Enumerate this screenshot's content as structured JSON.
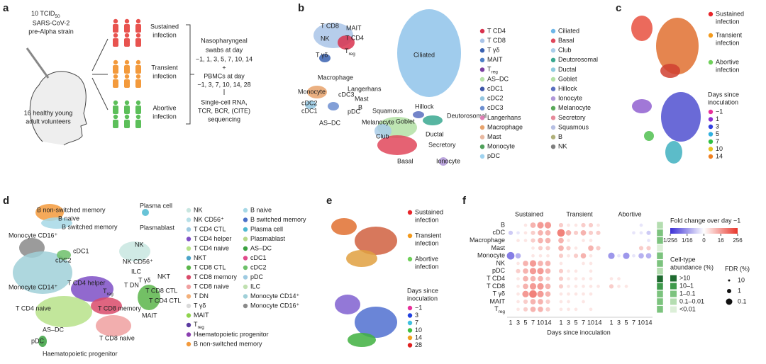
{
  "panels": {
    "a": {
      "letter": "a",
      "inoculum": {
        "dose": "10 TCID",
        "sub": "50",
        "lines": [
          "SARS-CoV-2",
          "pre-Alpha strain"
        ]
      },
      "cohort": [
        "16 healthy young",
        "adult volunteers"
      ],
      "groups": [
        {
          "name": [
            "Sustained",
            "infection"
          ],
          "color": "#e8534f"
        },
        {
          "name": [
            "Transient",
            "infection"
          ],
          "color": "#f39a3c"
        },
        {
          "name": [
            "Abortive",
            "infection"
          ],
          "color": "#5cbf5a"
        }
      ],
      "protocol": [
        "Nasopharyngeal",
        "swabs at day",
        "−1, 1, 3, 5, 7, 10, 14",
        "+",
        "PBMCs at day",
        "−1, 3, 7, 10, 14, 28",
        "Single-cell RNA,",
        "TCR, BCR, (CITE)",
        "sequencing"
      ]
    },
    "b": {
      "letter": "b",
      "umap_labels": [
        "T CD8",
        "MAIT",
        "T CD4",
        "NK",
        {
          "main": "T",
          "sub": "reg"
        },
        "T γδ",
        "Ciliated",
        "Macrophage",
        "Langerhans",
        "Monocyte",
        "cDC3",
        "Mast",
        "cDC2",
        "B",
        "cDC1",
        "pDC",
        "AS–DC",
        "Squamous",
        "Hillock",
        "Deutorosomal",
        "Melanocyte",
        "Goblet",
        "Ductal",
        "Club",
        "Secretory",
        "Basal",
        "Ionocyte"
      ],
      "legend": [
        [
          {
            "name": "T CD4",
            "color": "#d9314d"
          },
          {
            "name": "T CD8",
            "color": "#a9c4e8"
          },
          {
            "name": "T γδ",
            "color": "#3a61b0"
          },
          {
            "name": "MAIT",
            "color": "#4f80c7"
          },
          {
            "name": {
              "main": "T",
              "sub": "reg"
            },
            "color": "#7b3fa0"
          },
          {
            "name": "AS–DC",
            "color": "#b6e0a8"
          },
          {
            "name": "cDC1",
            "color": "#3f57a8"
          },
          {
            "name": "cDC2",
            "color": "#92c6e0"
          },
          {
            "name": "cDC3",
            "color": "#6c8ed0"
          },
          {
            "name": "Langerhans",
            "color": "#e07fb5"
          },
          {
            "name": "Macrophage",
            "color": "#e7a26b"
          },
          {
            "name": "Mast",
            "color": "#e8b8a0"
          },
          {
            "name": "Monocyte",
            "color": "#4fa05a"
          },
          {
            "name": "pDC",
            "color": "#9fd3f0"
          }
        ],
        [
          {
            "name": "Ciliated",
            "color": "#6db6e8"
          },
          {
            "name": "Basal",
            "color": "#e0475a"
          },
          {
            "name": "Club",
            "color": "#a9cde9"
          },
          {
            "name": "Deutorosomal",
            "color": "#3aa890"
          },
          {
            "name": "Ductal",
            "color": "#8fcbe0"
          },
          {
            "name": "Goblet",
            "color": "#b3e0a5"
          },
          {
            "name": "Hillock",
            "color": "#5a6fc0"
          },
          {
            "name": "Ionocyte",
            "color": "#b097d8"
          },
          {
            "name": "Melanocyte",
            "color": "#58a858"
          },
          {
            "name": "Secretory",
            "color": "#e68a9a"
          },
          {
            "name": "Squamous",
            "color": "#b6bfe3"
          },
          {
            "name": "B",
            "color": "#b0b07a"
          },
          {
            "name": "NK",
            "color": "#7f7f7f"
          }
        ]
      ]
    },
    "c": {
      "letter": "c",
      "infection": [
        {
          "name": [
            "Sustained",
            "infection"
          ],
          "color": "#e8252a"
        },
        {
          "name": [
            "Transient",
            "infection"
          ],
          "color": "#f39a1c"
        },
        {
          "name": [
            "Abortive",
            "infection"
          ],
          "color": "#6fd05a"
        }
      ],
      "days_title": [
        "Days since",
        "inoculation"
      ],
      "days": [
        {
          "name": "−1",
          "color": "#e8309a"
        },
        {
          "name": "1",
          "color": "#8c2fd0"
        },
        {
          "name": "3",
          "color": "#3040e0"
        },
        {
          "name": "5",
          "color": "#30b0e0"
        },
        {
          "name": "7",
          "color": "#30c040"
        },
        {
          "name": "10",
          "color": "#e8c020"
        },
        {
          "name": "14",
          "color": "#f08020"
        }
      ]
    },
    "d": {
      "letter": "d",
      "umap_labels": [
        "B non-switched memory",
        "B naive",
        "B switched memory",
        "Plasma cell",
        "Plasmablast",
        "Monocyte CD16⁺",
        "cDC1",
        "NK",
        "cDC2",
        "NK CD56⁺",
        "ILC",
        "NKT",
        "T γδ",
        "T DN",
        "T CD4 helper",
        {
          "main": "T",
          "sub": "reg"
        },
        "T CD8 CTL",
        "T CD4 CTL",
        "Monocyte CD14⁺",
        "T CD4 naive",
        "T CD8 memory",
        "MAIT",
        "AS–DC",
        "pDC",
        "T CD8 naive",
        "Haematopoietic progenitor"
      ],
      "legend": [
        [
          {
            "name": "NK",
            "color": "#c8e6e0"
          },
          {
            "name": "NK CD56⁺",
            "color": "#b7e0e8"
          },
          {
            "name": "T CD4 CTL",
            "color": "#9ecae1"
          },
          {
            "name": "T CD4 helper",
            "color": "#7e4fc6"
          },
          {
            "name": "T CD4 naive",
            "color": "#b7e28a"
          },
          {
            "name": "NKT",
            "color": "#4aa4c8"
          },
          {
            "name": "T CD8 CTL",
            "color": "#5ab54a"
          },
          {
            "name": "T CD8 memory",
            "color": "#d94a6a"
          },
          {
            "name": "T CD8 naive",
            "color": "#f0a0a0"
          },
          {
            "name": "T DN",
            "color": "#f3b07a"
          },
          {
            "name": "T γδ",
            "color": "#d9d9d9"
          },
          {
            "name": "MAIT",
            "color": "#8fd34d"
          },
          {
            "name": {
              "main": "T",
              "sub": "reg"
            },
            "color": "#5a3aa0"
          },
          {
            "name": "Haematopoietic progenitor",
            "color": "#8a3fb0"
          },
          {
            "name": "B non-switched memory",
            "color": "#f39a3c"
          }
        ],
        [
          {
            "name": "B naive",
            "color": "#a6d8e6"
          },
          {
            "name": "B switched memory",
            "color": "#4a6fc8"
          },
          {
            "name": "Plasma cell",
            "color": "#4db8d0"
          },
          {
            "name": "Plasmablast",
            "color": "#b7d98a"
          },
          {
            "name": "AS–DC",
            "color": "#3aa040"
          },
          {
            "name": "cDC1",
            "color": "#e04a8a"
          },
          {
            "name": "cDC2",
            "color": "#6dc06a"
          },
          {
            "name": "pDC",
            "color": "#9ecae1"
          },
          {
            "name": "ILC",
            "color": "#c0e0b0"
          },
          {
            "name": "Monocyte CD14⁺",
            "color": "#a0d0d8"
          },
          {
            "name": "Monocyte CD16⁺",
            "color": "#8a8a8a"
          }
        ]
      ]
    },
    "e": {
      "letter": "e",
      "infection": [
        {
          "name": [
            "Sustained",
            "infection"
          ],
          "color": "#e8252a"
        },
        {
          "name": [
            "Transient",
            "infection"
          ],
          "color": "#f39a1c"
        },
        {
          "name": [
            "Abortive",
            "infection"
          ],
          "color": "#6fd05a"
        }
      ],
      "days_title": [
        "Days since",
        "inoculation"
      ],
      "days": [
        {
          "name": "−1",
          "color": "#e8309a"
        },
        {
          "name": "3",
          "color": "#2040e0"
        },
        {
          "name": "7",
          "color": "#40c0e0"
        },
        {
          "name": "10",
          "color": "#40c040"
        },
        {
          "name": "14",
          "color": "#f0a020"
        },
        {
          "name": "28",
          "color": "#e02020"
        }
      ]
    },
    "f": {
      "letter": "f",
      "groups": [
        "Sustained",
        "Transient",
        "Abortive"
      ],
      "xticks": [
        1,
        3,
        5,
        7,
        10,
        14
      ],
      "xlabel": "Days since inoculation",
      "rows": [
        {
          "name": "B",
          "values": [
            0,
            0,
            1,
            3,
            4,
            4,
            2,
            1,
            1,
            2,
            2,
            1,
            0,
            0,
            0,
            0,
            -1,
            0
          ],
          "abundance": "0.1–0.01"
        },
        {
          "name": "cDC",
          "values": [
            -2,
            -1,
            1,
            2,
            3,
            3,
            5,
            3,
            2,
            3,
            2,
            2,
            0,
            0,
            0,
            -1,
            -1,
            -2
          ],
          "abundance": "1–0.1"
        },
        {
          "name": "Macrophage",
          "values": [
            0,
            1,
            1,
            2,
            3,
            3,
            3,
            1,
            0,
            1,
            1,
            0,
            0,
            0,
            0,
            0,
            0,
            -1
          ],
          "abundance": "1–0.1"
        },
        {
          "name": "Mast",
          "values": [
            0,
            0,
            0,
            1,
            2,
            2,
            3,
            2,
            1,
            0,
            3,
            2,
            0,
            0,
            0,
            0,
            2,
            2
          ],
          "abundance": "<0.01"
        },
        {
          "name": "Monocyte",
          "values": [
            -5,
            -3,
            0,
            1,
            1,
            1,
            2,
            1,
            2,
            3,
            1,
            0,
            -4,
            -1,
            -4,
            -1,
            -3,
            -3
          ],
          "abundance": "1–0.1"
        },
        {
          "name": "NK",
          "values": [
            0,
            1,
            3,
            4,
            3,
            3,
            1,
            0,
            0,
            1,
            1,
            0,
            0,
            0,
            0,
            0,
            0,
            0
          ],
          "abundance": "1–0.1"
        },
        {
          "name": "pDC",
          "values": [
            0,
            2,
            3,
            4,
            4,
            3,
            2,
            1,
            1,
            0,
            1,
            0,
            0,
            0,
            0,
            0,
            0,
            0
          ],
          "abundance": "0.1–0.01"
        },
        {
          "name": "T CD4",
          "values": [
            0,
            1,
            3,
            3,
            3,
            2,
            2,
            1,
            1,
            1,
            1,
            0,
            1,
            1,
            0,
            0,
            0,
            0
          ],
          "abundance": ">10"
        },
        {
          "name": "T CD8",
          "values": [
            0,
            1,
            3,
            4,
            4,
            3,
            2,
            1,
            1,
            1,
            1,
            1,
            2,
            1,
            1,
            0,
            0,
            0
          ],
          "abundance": "10–1"
        },
        {
          "name": "T γδ",
          "values": [
            0,
            1,
            4,
            5,
            4,
            3,
            1,
            1,
            1,
            1,
            1,
            0,
            0,
            0,
            0,
            0,
            0,
            0
          ],
          "abundance": "1–0.1"
        },
        {
          "name": "MAIT",
          "values": [
            0,
            1,
            2,
            3,
            3,
            2,
            1,
            1,
            0,
            1,
            0,
            0,
            0,
            0,
            0,
            0,
            0,
            0
          ],
          "abundance": "1–0.1"
        },
        {
          "name": {
            "main": "T",
            "sub": "reg"
          },
          "values": [
            0,
            1,
            2,
            3,
            3,
            2,
            1,
            1,
            1,
            0,
            1,
            0,
            0,
            0,
            0,
            0,
            0,
            0
          ],
          "abundance": "1–0.1"
        }
      ],
      "colorbar": {
        "title": "Fold change over day −1",
        "clim": [
          -8,
          8
        ],
        "colormap": [
          "#3b2fd6",
          "#ffffff",
          "#e8352a"
        ],
        "ticks": [
          {
            "value": -8,
            "label": "1/256"
          },
          {
            "value": -4,
            "label": "1/16"
          },
          0,
          {
            "value": 4,
            "label": "16"
          },
          {
            "value": 8,
            "label": "256"
          }
        ]
      },
      "abundance_legend": {
        "title": [
          "Cell-type",
          "abundance (%)"
        ],
        "entries": [
          {
            "name": ">10",
            "color": "#1f6b30"
          },
          {
            "name": "10–1",
            "color": "#3f9a4c"
          },
          {
            "name": "1–0.1",
            "color": "#7cc37e"
          },
          {
            "name": "0.1–0.01",
            "color": "#b4ddb0"
          },
          {
            "name": "<0.01",
            "color": "#dcefd8"
          }
        ]
      },
      "fdr_legend": {
        "title": "FDR (%)",
        "values": [
          10,
          1,
          0.1
        ]
      }
    }
  }
}
